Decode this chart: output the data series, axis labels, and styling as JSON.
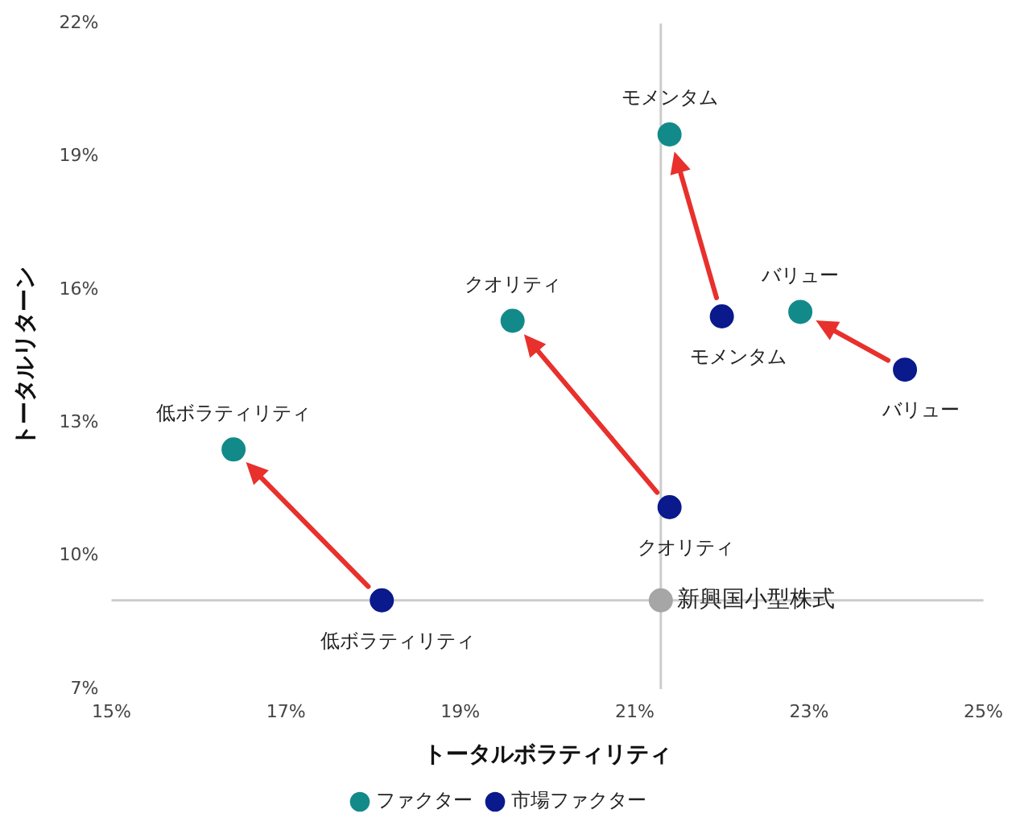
{
  "chart_data": {
    "type": "scatter",
    "xlabel": "トータルボラティリティ",
    "ylabel": "トータルリターン",
    "xlim": [
      15,
      25
    ],
    "xticks": [
      {
        "value": 15,
        "label": "15%"
      },
      {
        "value": 17,
        "label": "17%"
      },
      {
        "value": 19,
        "label": "19%"
      },
      {
        "value": 21,
        "label": "21%"
      },
      {
        "value": 23,
        "label": "23%"
      },
      {
        "value": 25,
        "label": "25%"
      }
    ],
    "ylim": [
      7,
      22
    ],
    "yticks": [
      {
        "value": 7,
        "label": "7%"
      },
      {
        "value": 10,
        "label": "10%"
      },
      {
        "value": 13,
        "label": "13%"
      },
      {
        "value": 16,
        "label": "16%"
      },
      {
        "value": 19,
        "label": "19%"
      },
      {
        "value": 22,
        "label": "22%"
      }
    ],
    "grid": false,
    "legend": "bottom",
    "marker": "circle",
    "series": [
      {
        "name": "ファクター",
        "color": "#138a8a",
        "x": [
          21.4,
          22.9,
          19.6,
          16.4
        ],
        "values": [
          19.5,
          15.5,
          15.3,
          12.4
        ]
      },
      {
        "name": "市場ファクター",
        "color": "#0a1a8c",
        "x": [
          22.0,
          24.1,
          21.4,
          18.1
        ],
        "values": [
          15.4,
          14.2,
          11.1,
          9.0
        ]
      },
      {
        "color": "#a6a6a6",
        "x": [
          21.3
        ],
        "values": [
          9.0
        ]
      }
    ],
    "ref_lines": [
      {
        "axis": "x",
        "value": 21.3,
        "color": "#cccccc"
      },
      {
        "axis": "y",
        "value": 9.0,
        "color": "#cccccc"
      }
    ],
    "annotations": [
      {
        "text": "モメンタム",
        "x": 21.4,
        "y": 19.5
      },
      {
        "text": "バリュー",
        "x": 22.9,
        "y": 15.5
      },
      {
        "text": "クオリティ",
        "x": 19.6,
        "y": 15.3
      },
      {
        "text": "低ボラティリティ",
        "x": 16.4,
        "y": 12.4
      },
      {
        "text": "モメンタム",
        "x": 22.0,
        "y": 15.4
      },
      {
        "text": "バリュー",
        "x": 24.1,
        "y": 14.2
      },
      {
        "text": "クオリティ",
        "x": 21.4,
        "y": 11.1
      },
      {
        "text": "低ボラティリティ",
        "x": 18.1,
        "y": 9.0
      },
      {
        "text": "新興国小型株式",
        "x": 21.3,
        "y": 9.0
      }
    ]
  }
}
